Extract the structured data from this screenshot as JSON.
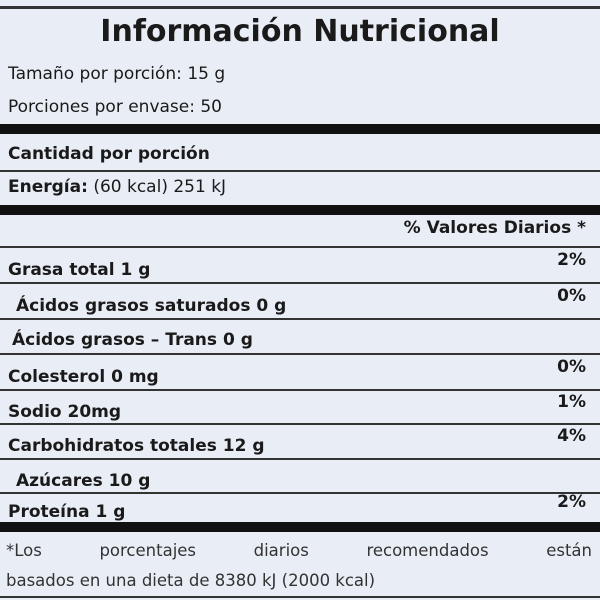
{
  "label": {
    "title": "Información Nutricional",
    "serving_size": "Tamaño por porción: 15 g",
    "servings_per_container": "Porciones por envase: 50",
    "amount_per_serving": "Cantidad por porción",
    "energy_label": "Energía:",
    "energy_value": "(60 kcal) 251 kJ",
    "daily_values_header": "% Valores Diarios *",
    "nutrients": [
      {
        "name": "Grasa total 1 g",
        "dv": "2%"
      },
      {
        "name": "Ácidos grasos saturados 0 g",
        "dv": "0%"
      },
      {
        "name": "Ácidos grasos – Trans 0 g",
        "dv": ""
      },
      {
        "name": "Colesterol 0 mg",
        "dv": "0%"
      },
      {
        "name": "Sodio 20mg",
        "dv": "1%"
      },
      {
        "name": "Carbohidratos totales 12 g",
        "dv": "4%"
      },
      {
        "name": "Azúcares 10 g",
        "dv": ""
      },
      {
        "name": "Proteína  1 g",
        "dv": "2%"
      }
    ],
    "footnote_line1": "*Los porcentajes diarios recomendados están",
    "footnote_line2": "basados en una dieta de 8380 kJ (2000 kcal)"
  }
}
